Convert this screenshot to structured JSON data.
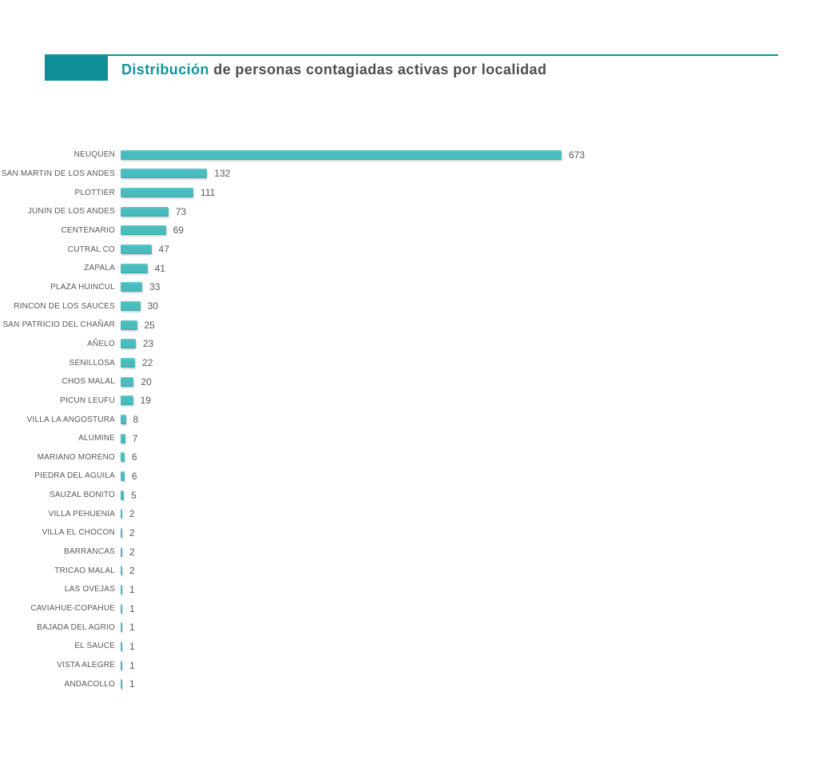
{
  "header": {
    "title_highlight": "Distribución",
    "title_rest": " de personas contagiadas activas por localidad"
  },
  "colors": {
    "accent_dark_teal": "#0e8f98",
    "header_rule_teal": "#11929d",
    "title_highlight_teal": "#14929e",
    "bar_teal": "#4bbcbe",
    "bar_edge_dark": "#2fa9ad",
    "text_gray": "#595959"
  },
  "chart_data": {
    "type": "bar",
    "orientation": "horizontal",
    "title": "Distribución de personas contagiadas activas por localidad",
    "xlabel": "",
    "ylabel": "",
    "grid": false,
    "legend": false,
    "value_labels_shown": true,
    "xlim": [
      0,
      700
    ],
    "categories": [
      "NEUQUEN",
      "SAN MARTIN DE LOS ANDES",
      "PLOTTIER",
      "JUNIN DE LOS ANDES",
      "CENTENARIO",
      "CUTRAL CO",
      "ZAPALA",
      "PLAZA HUINCUL",
      "RINCON DE LOS SAUCES",
      "SAN PATRICIO DEL CHAÑAR",
      "AÑELO",
      "SENILLOSA",
      "CHOS MALAL",
      "PICUN LEUFU",
      "VILLA LA ANGOSTURA",
      "ALUMINE",
      "MARIANO MORENO",
      "PIEDRA DEL AGUILA",
      "SAUZAL BONITO",
      "VILLA PEHUENIA",
      "VILLA EL CHOCON",
      "BARRANCAS",
      "TRICAO MALAL",
      "LAS OVEJAS",
      "CAVIAHUE-COPAHUE",
      "BAJADA DEL AGRIO",
      "EL SAUCE",
      "VISTA ALEGRE",
      "ANDACOLLO"
    ],
    "values": [
      673,
      132,
      111,
      73,
      69,
      47,
      41,
      33,
      30,
      25,
      23,
      22,
      20,
      19,
      8,
      7,
      6,
      6,
      5,
      2,
      2,
      2,
      2,
      1,
      1,
      1,
      1,
      1,
      1
    ],
    "bar_color": "#4bbcbe"
  }
}
